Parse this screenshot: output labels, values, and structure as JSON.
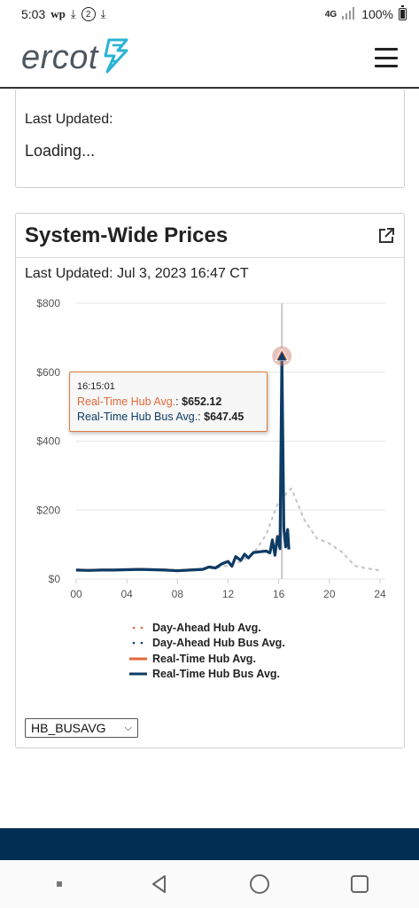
{
  "status_bar": {
    "time": "5:03",
    "left_icons": [
      "wp",
      "download-icon",
      "2",
      "download-icon"
    ],
    "network": "4G",
    "battery": "100%"
  },
  "header": {
    "logo_text": "ercot",
    "logo_color": "#4d565e",
    "bolt_color": "#29b3d4"
  },
  "card1": {
    "last_updated_label": "Last Updated:",
    "status_text": "Loading..."
  },
  "card2": {
    "title": "System-Wide Prices",
    "last_updated": "Last Updated: Jul 3, 2023 16:47 CT"
  },
  "tooltip": {
    "time": "16:15:01",
    "rt_hub_label": "Real-Time Hub Avg.",
    "rt_hub_value": "$652.12",
    "rt_bus_label": "Real-Time Hub Bus Avg.",
    "rt_bus_value": "$647.45"
  },
  "chart_data": {
    "type": "line",
    "ylim": [
      0,
      800
    ],
    "xlim": [
      0,
      24
    ],
    "y_ticks": [
      "$0",
      "$200",
      "$400",
      "$600",
      "$800"
    ],
    "y_tick_values": [
      0,
      200,
      400,
      600,
      800
    ],
    "x_ticks": [
      "00",
      "04",
      "08",
      "12",
      "16",
      "20",
      "24"
    ],
    "x_tick_values": [
      0,
      4,
      8,
      12,
      16,
      20,
      24
    ],
    "grid": true,
    "crosshair_x": 16.25,
    "series": [
      {
        "name": "Day-Ahead Hub Avg.",
        "color": "#e4683a",
        "style": "dotted",
        "x": [
          0,
          1,
          2,
          3,
          4,
          5,
          6,
          7,
          8,
          9,
          10,
          11,
          12,
          13,
          14,
          15,
          16,
          17,
          18,
          19,
          20,
          21,
          22,
          23,
          24
        ],
        "y": [
          27,
          27,
          27,
          27,
          27,
          27,
          27,
          26,
          26,
          27,
          29,
          33,
          40,
          52,
          75,
          130,
          230,
          265,
          175,
          120,
          105,
          80,
          40,
          32,
          26
        ]
      },
      {
        "name": "Day-Ahead Hub Bus Avg.",
        "color": "#0d3c66",
        "style": "dotted",
        "x": [
          0,
          1,
          2,
          3,
          4,
          5,
          6,
          7,
          8,
          9,
          10,
          11,
          12,
          13,
          14,
          15,
          16,
          17,
          18,
          19,
          20,
          21,
          22,
          23,
          24
        ],
        "y": [
          26,
          26,
          26,
          26,
          26,
          26,
          26,
          25,
          25,
          26,
          28,
          32,
          39,
          51,
          73,
          128,
          226,
          262,
          172,
          118,
          103,
          78,
          38,
          30,
          25
        ]
      },
      {
        "name": "Real-Time Hub Avg.",
        "color": "#e4683a",
        "style": "solid",
        "x": [
          0,
          1,
          2,
          3,
          4,
          5,
          6,
          7,
          8,
          9,
          10,
          10.5,
          11,
          11.5,
          12,
          12.3,
          12.6,
          13,
          13.3,
          13.6,
          14,
          14.5,
          15,
          15.3,
          15.5,
          15.7,
          15.9,
          16.1,
          16.25,
          16.4,
          16.55,
          16.7,
          16.8
        ],
        "y": [
          27,
          26,
          27,
          27,
          28,
          29,
          28,
          27,
          25,
          27,
          29,
          36,
          33,
          45,
          52,
          38,
          66,
          55,
          73,
          62,
          78,
          80,
          82,
          77,
          115,
          70,
          125,
          90,
          652,
          150,
          95,
          145,
          88
        ]
      },
      {
        "name": "Real-Time Hub Bus Avg.",
        "color": "#0d3c66",
        "style": "solid",
        "x": [
          0,
          1,
          2,
          3,
          4,
          5,
          6,
          7,
          8,
          9,
          10,
          10.5,
          11,
          11.5,
          12,
          12.3,
          12.6,
          13,
          13.3,
          13.6,
          14,
          14.5,
          15,
          15.3,
          15.5,
          15.7,
          15.9,
          16.1,
          16.25,
          16.4,
          16.55,
          16.7,
          16.8
        ],
        "y": [
          26,
          25,
          26,
          26,
          27,
          28,
          27,
          26,
          24,
          26,
          28,
          35,
          32,
          44,
          51,
          37,
          65,
          54,
          72,
          61,
          77,
          79,
          81,
          76,
          113,
          69,
          123,
          88,
          647,
          148,
          93,
          143,
          86
        ]
      }
    ]
  },
  "legend": {
    "items": [
      {
        "label": "Day-Ahead Hub Avg.",
        "color": "#e4683a",
        "style": "dotted"
      },
      {
        "label": "Day-Ahead Hub Bus Avg.",
        "color": "#0d3c66",
        "style": "dotted"
      },
      {
        "label": "Real-Time Hub Avg.",
        "color": "#e4683a",
        "style": "solid"
      },
      {
        "label": "Real-Time Hub Bus Avg.",
        "color": "#0d3c66",
        "style": "solid"
      }
    ]
  },
  "select": {
    "value": "HB_BUSAVG"
  },
  "footer_color": "#012e53"
}
